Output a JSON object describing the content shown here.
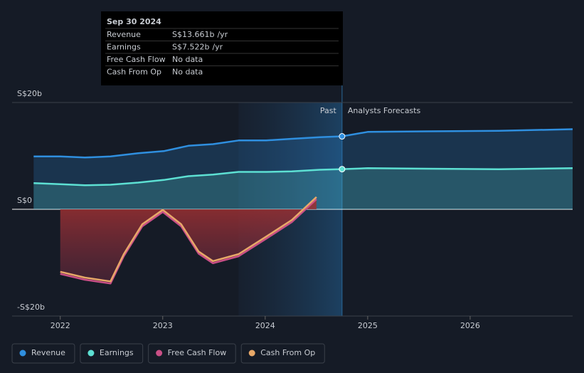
{
  "chart_data": {
    "type": "line",
    "xlim": [
      2021.53,
      2027.0
    ],
    "xticks": [
      2022,
      2023,
      2024,
      2025,
      2026
    ],
    "ylim": [
      -20,
      20
    ],
    "yticks": [
      {
        "value": 20,
        "label": "S$20b"
      },
      {
        "value": 0,
        "label": "S$0"
      },
      {
        "value": -20,
        "label": "-S$20b"
      }
    ],
    "past_range": [
      2023.74,
      2024.75
    ],
    "past_label": "Past",
    "forecast_label": "Analysts Forecasts",
    "series": [
      {
        "name": "Revenue",
        "color": "#2f8fdf",
        "x": [
          2021.74,
          2022.0,
          2022.24,
          2022.49,
          2022.76,
          2023.01,
          2023.25,
          2023.49,
          2023.74,
          2024.01,
          2024.26,
          2024.53,
          2024.75,
          2025.0,
          2025.58,
          2026.28,
          2027.0
        ],
        "values": [
          9.9,
          9.9,
          9.7,
          9.9,
          10.5,
          10.9,
          11.9,
          12.2,
          12.9,
          12.9,
          13.2,
          13.5,
          13.661,
          14.5,
          14.6,
          14.7,
          15.0
        ]
      },
      {
        "name": "Earnings",
        "color": "#5de0d3",
        "x": [
          2021.74,
          2022.0,
          2022.24,
          2022.49,
          2022.76,
          2023.01,
          2023.25,
          2023.49,
          2023.74,
          2024.01,
          2024.26,
          2024.53,
          2024.75,
          2025.0,
          2025.58,
          2026.28,
          2027.0
        ],
        "values": [
          4.9,
          4.7,
          4.5,
          4.6,
          5.0,
          5.5,
          6.2,
          6.5,
          7.0,
          7.0,
          7.1,
          7.4,
          7.522,
          7.7,
          7.6,
          7.5,
          7.7
        ]
      },
      {
        "name": "Free Cash Flow",
        "color": "#c94f86",
        "x": [
          2022.0,
          2022.24,
          2022.49,
          2022.62,
          2022.8,
          2023.0,
          2023.18,
          2023.35,
          2023.49,
          2023.74,
          2024.01,
          2024.26,
          2024.5
        ],
        "values": [
          -12.1,
          -13.2,
          -13.9,
          -8.8,
          -3.2,
          -0.5,
          -3.2,
          -8.3,
          -10.1,
          -8.8,
          -5.5,
          -2.4,
          1.9
        ]
      },
      {
        "name": "Cash From Op",
        "color": "#e8a868",
        "x": [
          2022.0,
          2022.24,
          2022.49,
          2022.62,
          2022.8,
          2023.0,
          2023.18,
          2023.35,
          2023.49,
          2023.74,
          2024.01,
          2024.26,
          2024.5
        ],
        "values": [
          -11.7,
          -12.8,
          -13.5,
          -8.4,
          -2.8,
          -0.1,
          -2.8,
          -7.9,
          -9.7,
          -8.4,
          -5.1,
          -2.0,
          2.3
        ]
      }
    ],
    "tooltip": {
      "title": "Sep 30 2024",
      "rows": [
        {
          "label": "Revenue",
          "value": "S$13.661b",
          "unit": "/yr"
        },
        {
          "label": "Earnings",
          "value": "S$7.522b",
          "unit": "/yr"
        },
        {
          "label": "Free Cash Flow",
          "value": "No data"
        },
        {
          "label": "Cash From Op",
          "value": "No data"
        }
      ]
    }
  }
}
